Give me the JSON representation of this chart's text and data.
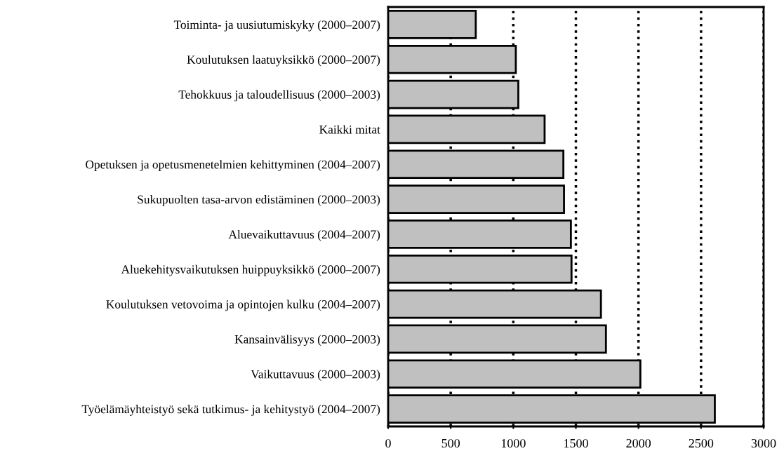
{
  "chart_data": {
    "type": "bar",
    "orientation": "horizontal",
    "categories": [
      "Toiminta- ja uusiutumiskyky (2000–2007)",
      "Koulutuksen laatuyksikkö (2000–2007)",
      "Tehokkuus ja taloudellisuus (2000–2003)",
      "Kaikki mitat",
      "Opetuksen ja opetusmenetelmien kehittyminen (2004–2007)",
      "Sukupuolten tasa-arvon edistäminen (2000–2003)",
      "Aluevaikuttavuus (2004–2007)",
      "Aluekehitysvaikutuksen huippuyksikkö (2000–2007)",
      "Koulutuksen vetovoima ja opintojen kulku (2004–2007)",
      "Kansainvälisyys (2000–2003)",
      "Vaikuttavuus (2000–2003)",
      "Työelämäyhteistyö sekä tutkimus- ja kehitystyö (2004–2007)"
    ],
    "values": [
      700,
      1020,
      1040,
      1250,
      1400,
      1405,
      1460,
      1465,
      1700,
      1740,
      2015,
      2610
    ],
    "color": "#c0c0c0",
    "xlim": [
      0,
      3000
    ],
    "xticks": [
      0,
      500,
      1000,
      1500,
      2000,
      2500,
      3000
    ],
    "grid": "x",
    "line_style": "dotted"
  }
}
